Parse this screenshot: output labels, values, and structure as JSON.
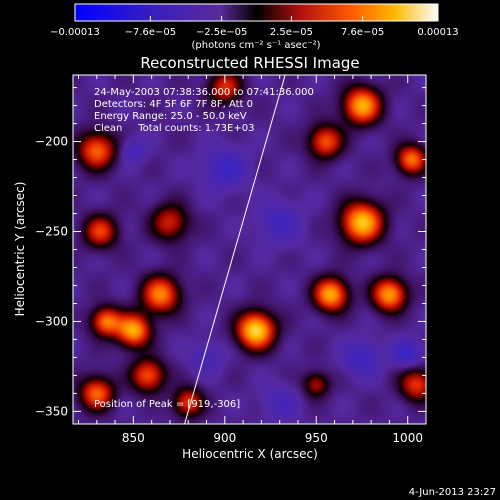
{
  "chart_data": {
    "type": "heatmap",
    "title": "Reconstructed RHESSI Image",
    "xlabel": "Heliocentric X (arcsec)",
    "ylabel": "Heliocentric Y (arcsec)",
    "xlim": [
      817,
      1010
    ],
    "ylim": [
      -357,
      -163
    ],
    "x_ticks": [
      850,
      900,
      950,
      1000
    ],
    "y_ticks": [
      -200,
      -250,
      -300,
      -350
    ],
    "x_tick_labels": [
      "850",
      "900",
      "950",
      "1000"
    ],
    "y_tick_labels": [
      "−200",
      "−250",
      "−300",
      "−350"
    ],
    "colorbar": {
      "range": [
        -0.00013,
        0.00013
      ],
      "ticks": [
        -0.00013,
        -7.6e-05,
        -2.5e-05,
        2.5e-05,
        7.6e-05,
        0.00013
      ],
      "tick_labels": [
        "−0.00013",
        "−7.6e−05",
        "−2.5e−05",
        "2.5e−05",
        "7.6e−05",
        "0.00013"
      ],
      "units_label": "(photons cm⁻² s⁻¹ asec⁻²)"
    },
    "annotations": [
      "24-May-2003 07:38:36.000 to 07:41:36.000",
      "Detectors: 4F 5F 6F 7F 8F, Att 0",
      "Energy Range: 25.0 - 50.0 keV",
      "Clean     Total counts: 1.73E+03"
    ],
    "peak_label": "Position of Peak = [919,-306]",
    "peak": [
      919,
      -306
    ],
    "limb_line": [
      [
        878,
        -357
      ],
      [
        933,
        -163
      ]
    ],
    "blobs": [
      {
        "x": 917,
        "y": -305,
        "r": 10,
        "v": 0.00013
      },
      {
        "x": 850,
        "y": -305,
        "r": 9,
        "v": 0.00011
      },
      {
        "x": 835,
        "y": -300,
        "r": 8,
        "v": 9e-05
      },
      {
        "x": 865,
        "y": -285,
        "r": 10,
        "v": 9.5e-05
      },
      {
        "x": 858,
        "y": -330,
        "r": 9,
        "v": 8e-05
      },
      {
        "x": 830,
        "y": -340,
        "r": 9,
        "v": 8.5e-05
      },
      {
        "x": 880,
        "y": -345,
        "r": 8,
        "v": 7e-05
      },
      {
        "x": 832,
        "y": -250,
        "r": 9,
        "v": 7e-05
      },
      {
        "x": 870,
        "y": -245,
        "r": 10,
        "v": 6e-05
      },
      {
        "x": 830,
        "y": -205,
        "r": 10,
        "v": 8.5e-05
      },
      {
        "x": 900,
        "y": -170,
        "r": 9,
        "v": 6.5e-05
      },
      {
        "x": 975,
        "y": -180,
        "r": 10,
        "v": 0.00011
      },
      {
        "x": 955,
        "y": -200,
        "r": 9,
        "v": 8e-05
      },
      {
        "x": 975,
        "y": -245,
        "r": 11,
        "v": 0.00012
      },
      {
        "x": 958,
        "y": -285,
        "r": 9,
        "v": 0.00011
      },
      {
        "x": 990,
        "y": -285,
        "r": 9,
        "v": 0.000105
      },
      {
        "x": 1002,
        "y": -210,
        "r": 8,
        "v": 9e-05
      },
      {
        "x": 1005,
        "y": -335,
        "r": 9,
        "v": 7e-05
      },
      {
        "x": 950,
        "y": -335,
        "r": 7,
        "v": 5e-05
      },
      {
        "x": 850,
        "y": -205,
        "r": -7,
        "v": -4e-05
      },
      {
        "x": 900,
        "y": -215,
        "r": 12,
        "v": -4.5e-05
      },
      {
        "x": 930,
        "y": -245,
        "r": 12,
        "v": -4e-05
      },
      {
        "x": 975,
        "y": -320,
        "r": 10,
        "v": -4.5e-05
      },
      {
        "x": 1000,
        "y": -318,
        "r": 8,
        "v": -5e-05
      },
      {
        "x": 890,
        "y": -320,
        "r": 9,
        "v": -3.5e-05
      },
      {
        "x": 930,
        "y": -345,
        "r": 10,
        "v": -3.5e-05
      }
    ]
  },
  "footer": {
    "timestamp": "4-Jun-2013 23:27"
  }
}
